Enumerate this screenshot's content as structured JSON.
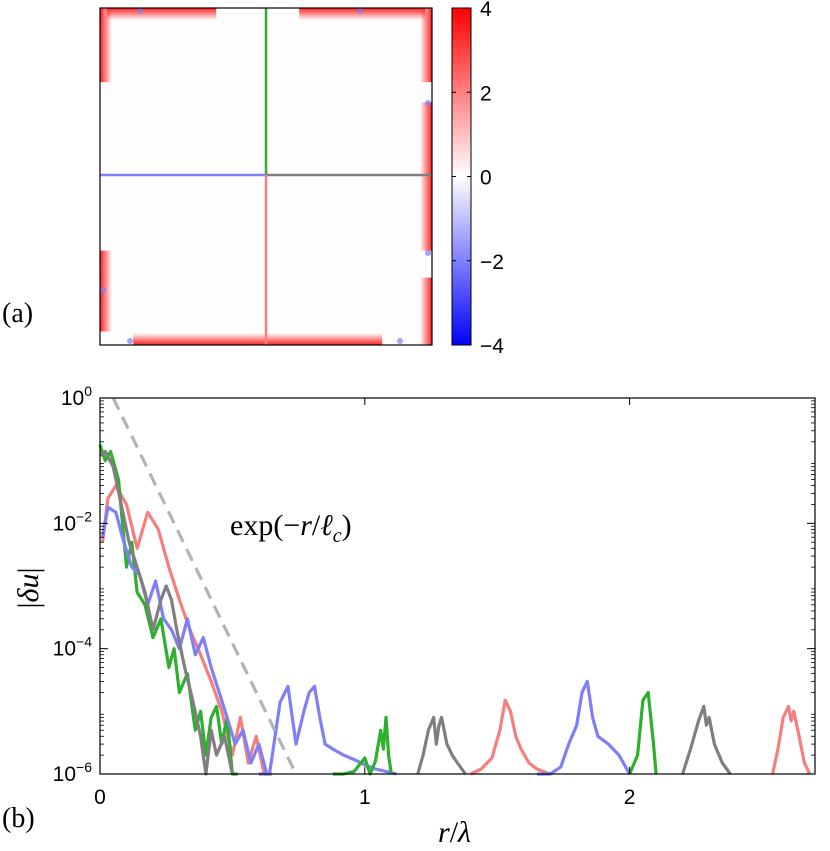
{
  "chart_data": [
    {
      "panel": "(a)",
      "type": "heatmap",
      "colorbar": {
        "ticks": [
          "4",
          "2",
          "0",
          "−2",
          "−4"
        ],
        "tick_values": [
          4,
          2,
          0,
          -2,
          -4
        ],
        "range": [
          -4,
          4
        ],
        "colors": [
          "#0000ff",
          "#ffffff",
          "#ff0000"
        ]
      },
      "lines": [
        {
          "direction": "up",
          "color": "#2db02d"
        },
        {
          "direction": "left",
          "color": "#7f7ff8"
        },
        {
          "direction": "right",
          "color": "#7f7f7f"
        },
        {
          "direction": "down",
          "color": "#f57f7f"
        }
      ],
      "edges": [
        {
          "edge": "top",
          "segments": [
            [
              0.02,
              0.35,
              4
            ],
            [
              0.6,
              0.98,
              4
            ]
          ]
        },
        {
          "edge": "bottom",
          "segments": [
            [
              0.1,
              0.85,
              4
            ]
          ]
        },
        {
          "edge": "left",
          "segments": [
            [
              0.0,
              0.22,
              4
            ],
            [
              0.72,
              0.96,
              4
            ]
          ]
        },
        {
          "edge": "right",
          "segments": [
            [
              0.0,
              0.22,
              4
            ],
            [
              0.28,
              0.72,
              4
            ],
            [
              0.8,
              1.0,
              4
            ]
          ]
        }
      ]
    },
    {
      "panel": "(b)",
      "type": "line",
      "xlabel": "r/λ",
      "ylabel": "|δu|",
      "yscale": "log",
      "xlim": [
        0,
        2.7
      ],
      "ylim": [
        1e-06,
        1
      ],
      "xticks": [
        0,
        1,
        2
      ],
      "xtick_labels": [
        "0",
        "1",
        "2"
      ],
      "yticks": [
        1e-06,
        0.0001,
        0.01,
        1
      ],
      "ytick_labels": [
        {
          "base": "10",
          "exp": "−6"
        },
        {
          "base": "10",
          "exp": "−4"
        },
        {
          "base": "10",
          "exp": "−2"
        },
        {
          "base": "10",
          "exp": "0"
        }
      ],
      "annotation": "exp(−r/ℓc)",
      "series": [
        {
          "color": "#f57f7f",
          "x": [
            0.01,
            0.03,
            0.06,
            0.1,
            0.14,
            0.18,
            0.22,
            0.26,
            0.3,
            0.34,
            0.38,
            0.42,
            0.46,
            0.5,
            0.53,
            0.56,
            0.59,
            0.62,
            0.65
          ],
          "y": [
            0.005,
            0.025,
            0.04,
            0.02,
            0.004,
            0.015,
            0.008,
            0.002,
            0.0006,
            0.0002,
            8e-05,
            3e-05,
            1e-05,
            2e-06,
            8e-06,
            1.5e-06,
            4e-06,
            1e-06,
            1e-06
          ]
        },
        {
          "color": "#2db02d",
          "x": [
            0.0,
            0.02,
            0.04,
            0.07,
            0.1,
            0.12,
            0.14,
            0.17,
            0.2,
            0.23,
            0.26,
            0.28,
            0.3,
            0.33,
            0.36,
            0.38,
            0.4,
            0.42,
            0.44,
            0.46,
            0.48,
            0.5,
            0.52
          ],
          "y": [
            0.18,
            0.1,
            0.14,
            0.05,
            0.002,
            0.005,
            0.0008,
            0.0005,
            0.00015,
            0.0003,
            5e-05,
            0.0001,
            2e-05,
            4e-05,
            5e-06,
            1e-05,
            2e-06,
            8e-06,
            1.2e-05,
            3e-06,
            8e-06,
            1e-06,
            1e-06
          ]
        },
        {
          "color": "#7f7ff8",
          "x": [
            0.01,
            0.03,
            0.06,
            0.09,
            0.12,
            0.15,
            0.18,
            0.21,
            0.24,
            0.27,
            0.3,
            0.33,
            0.36,
            0.39,
            0.42,
            0.45,
            0.48,
            0.51,
            0.54,
            0.57,
            0.6,
            0.63
          ],
          "y": [
            0.006,
            0.018,
            0.015,
            0.005,
            0.002,
            0.0015,
            0.0005,
            0.0012,
            0.0003,
            0.0002,
            0.0001,
            0.0003,
            8e-05,
            0.00015,
            5e-05,
            2e-05,
            8e-06,
            3e-06,
            5e-06,
            1.5e-06,
            3e-06,
            1e-06
          ]
        },
        {
          "color": "#7f7f7f",
          "x": [
            0.0,
            0.02,
            0.05,
            0.08,
            0.11,
            0.14,
            0.17,
            0.2,
            0.23,
            0.25,
            0.27,
            0.29,
            0.32,
            0.35,
            0.38,
            0.4,
            0.42,
            0.44,
            0.47,
            0.5
          ],
          "y": [
            0.12,
            0.14,
            0.08,
            0.02,
            0.005,
            0.002,
            0.0008,
            0.0002,
            0.0006,
            0.001,
            0.0006,
            0.0002,
            5e-05,
            1.5e-05,
            4e-06,
            1e-06,
            5e-06,
            2e-06,
            4e-06,
            1e-06
          ]
        },
        {
          "color": "#7f7ff8",
          "x": [
            0.6,
            0.64,
            0.68,
            0.71,
            0.74,
            0.77,
            0.79,
            0.81,
            0.83,
            0.85,
            0.88,
            0.92,
            0.96,
            1.0,
            1.04,
            1.08,
            1.12
          ],
          "y": [
            1e-06,
            1e-06,
            1.4e-05,
            2.5e-05,
            3e-06,
            1e-05,
            2e-05,
            2.5e-05,
            8e-06,
            3e-06,
            2.5e-06,
            2e-06,
            1.7e-06,
            1.4e-06,
            1.2e-06,
            1.1e-06,
            1e-06
          ]
        },
        {
          "color": "#2db02d",
          "x": [
            0.88,
            0.92,
            0.96,
            1.0,
            1.02,
            1.04,
            1.06,
            1.07,
            1.08,
            1.09,
            1.1
          ],
          "y": [
            1e-06,
            1e-06,
            1.1e-06,
            1.8e-06,
            1e-06,
            1.6e-06,
            5e-06,
            2.5e-06,
            8e-06,
            2e-06,
            1e-06
          ]
        },
        {
          "color": "#7f7f7f",
          "x": [
            1.2,
            1.22,
            1.24,
            1.26,
            1.27,
            1.28,
            1.29,
            1.31,
            1.33,
            1.35,
            1.38
          ],
          "y": [
            1e-06,
            2e-06,
            5e-06,
            8e-06,
            3e-06,
            6e-06,
            8e-06,
            3e-06,
            2e-06,
            1.5e-06,
            1e-06
          ]
        },
        {
          "color": "#f57f7f",
          "x": [
            1.4,
            1.44,
            1.48,
            1.51,
            1.53,
            1.55,
            1.57,
            1.59,
            1.62,
            1.65,
            1.7
          ],
          "y": [
            1e-06,
            1.2e-06,
            1.8e-06,
            5e-06,
            1.5e-05,
            1e-05,
            4e-06,
            2.5e-06,
            1.5e-06,
            1.2e-06,
            1e-06
          ]
        },
        {
          "color": "#7f7ff8",
          "x": [
            1.65,
            1.7,
            1.74,
            1.77,
            1.8,
            1.82,
            1.84,
            1.86,
            1.88,
            1.92,
            1.96,
            2.0
          ],
          "y": [
            1e-06,
            1e-06,
            1.3e-06,
            3e-06,
            6e-06,
            2e-05,
            3e-05,
            8e-06,
            4e-06,
            3e-06,
            2e-06,
            1e-06
          ]
        },
        {
          "color": "#2db02d",
          "x": [
            2.0,
            2.03,
            2.05,
            2.07,
            2.09,
            2.1
          ],
          "y": [
            1e-06,
            2e-06,
            1.5e-05,
            2e-05,
            3e-06,
            1e-06
          ]
        },
        {
          "color": "#7f7f7f",
          "x": [
            2.2,
            2.23,
            2.26,
            2.28,
            2.29,
            2.3,
            2.32,
            2.35,
            2.38
          ],
          "y": [
            1e-06,
            2.5e-06,
            7e-06,
            1.2e-05,
            6e-06,
            8e-06,
            3e-06,
            1.5e-06,
            1e-06
          ]
        },
        {
          "color": "#f57f7f",
          "x": [
            2.54,
            2.56,
            2.58,
            2.6,
            2.61,
            2.62,
            2.64,
            2.66,
            2.68
          ],
          "y": [
            1e-06,
            2.5e-06,
            8e-06,
            1.2e-05,
            7e-06,
            1e-05,
            4e-06,
            1.5e-06,
            1e-06
          ]
        }
      ],
      "reference_line": {
        "style": "dashed",
        "color": "#b3b3b3",
        "x": [
          0.05,
          0.74
        ],
        "y": [
          1,
          1e-06
        ]
      }
    }
  ],
  "labels": {
    "panel_a": "(a)",
    "panel_b": "(b)"
  }
}
